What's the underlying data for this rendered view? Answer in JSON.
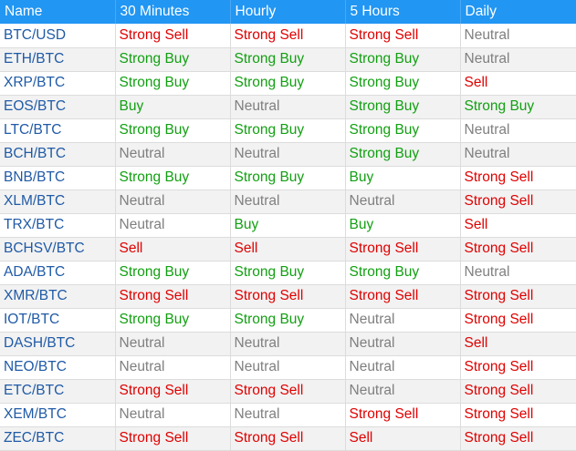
{
  "table": {
    "headers": [
      "Name",
      "30 Minutes",
      "Hourly",
      "5 Hours",
      "Daily"
    ],
    "rows": [
      [
        "BTC/USD",
        "Strong Sell",
        "Strong Sell",
        "Strong Sell",
        "Neutral"
      ],
      [
        "ETH/BTC",
        "Strong Buy",
        "Strong Buy",
        "Strong Buy",
        "Neutral"
      ],
      [
        "XRP/BTC",
        "Strong Buy",
        "Strong Buy",
        "Strong Buy",
        "Sell"
      ],
      [
        "EOS/BTC",
        "Buy",
        "Neutral",
        "Strong Buy",
        "Strong Buy"
      ],
      [
        "LTC/BTC",
        "Strong Buy",
        "Strong Buy",
        "Strong Buy",
        "Neutral"
      ],
      [
        "BCH/BTC",
        "Neutral",
        "Neutral",
        "Strong Buy",
        "Neutral"
      ],
      [
        "BNB/BTC",
        "Strong Buy",
        "Strong Buy",
        "Buy",
        "Strong Sell"
      ],
      [
        "XLM/BTC",
        "Neutral",
        "Neutral",
        "Neutral",
        "Strong Sell"
      ],
      [
        "TRX/BTC",
        "Neutral",
        "Buy",
        "Buy",
        "Sell"
      ],
      [
        "BCHSV/BTC",
        "Sell",
        "Sell",
        "Strong Sell",
        "Strong Sell"
      ],
      [
        "ADA/BTC",
        "Strong Buy",
        "Strong Buy",
        "Strong Buy",
        "Neutral"
      ],
      [
        "XMR/BTC",
        "Strong Sell",
        "Strong Sell",
        "Strong Sell",
        "Strong Sell"
      ],
      [
        "IOT/BTC",
        "Strong Buy",
        "Strong Buy",
        "Neutral",
        "Strong Sell"
      ],
      [
        "DASH/BTC",
        "Neutral",
        "Neutral",
        "Neutral",
        "Sell"
      ],
      [
        "NEO/BTC",
        "Neutral",
        "Neutral",
        "Neutral",
        "Strong Sell"
      ],
      [
        "ETC/BTC",
        "Strong Sell",
        "Strong Sell",
        "Neutral",
        "Strong Sell"
      ],
      [
        "XEM/BTC",
        "Neutral",
        "Neutral",
        "Strong Sell",
        "Strong Sell"
      ],
      [
        "ZEC/BTC",
        "Strong Sell",
        "Strong Sell",
        "Sell",
        "Strong Sell"
      ]
    ]
  },
  "colors": {
    "header_background": "#2196f3",
    "header_text": "#ffffff",
    "pair_name": "#1f5aa6",
    "sell": "#e00000",
    "buy": "#12a012",
    "neutral": "#7f7f7f",
    "row_alternate": "#f2f2f2"
  }
}
